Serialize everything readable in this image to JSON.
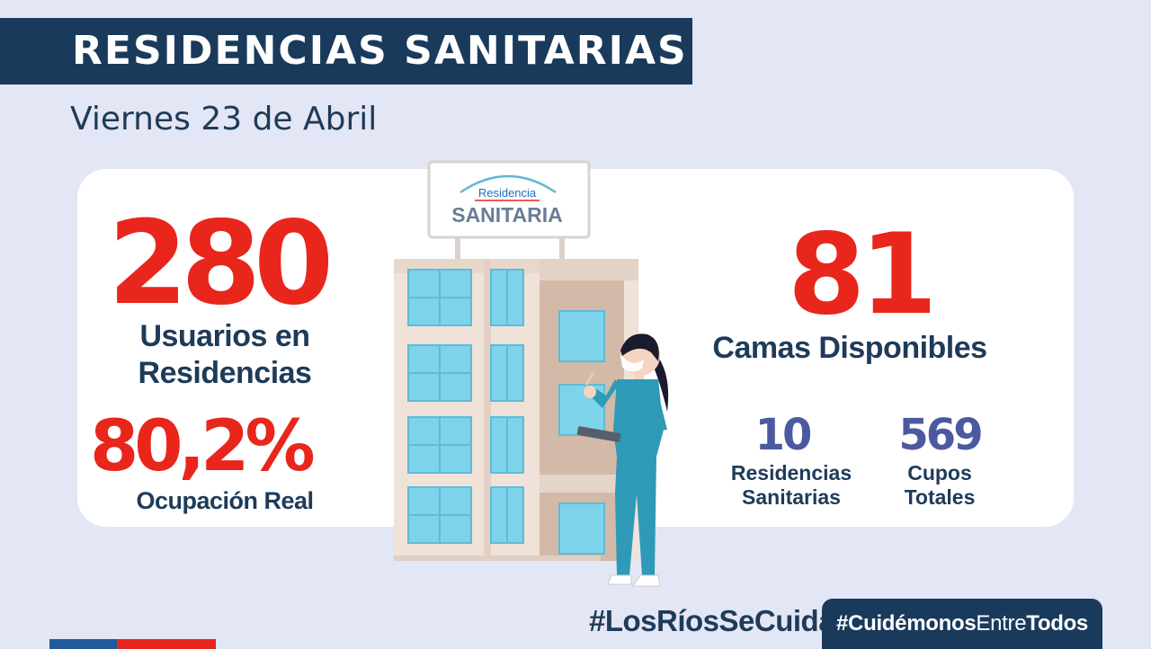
{
  "header": {
    "title": "RESIDENCIAS SANITARIAS",
    "date": "Viernes 23 de Abril"
  },
  "stats_left": {
    "users_value": "280",
    "users_label_line1": "Usuarios en",
    "users_label_line2": "Residencias",
    "occupancy_value": "80,2%",
    "occupancy_label": "Ocupación Real"
  },
  "stats_right": {
    "beds_value": "81",
    "beds_label": "Camas Disponibles",
    "residences_value": "10",
    "residences_label_line1": "Residencias",
    "residences_label_line2": "Sanitarias",
    "slots_value": "569",
    "slots_label_line1": "Cupos",
    "slots_label_line2": "Totales"
  },
  "sign": {
    "line1": "Residencia",
    "line2": "SANITARIA"
  },
  "footer": {
    "hashtag_left": "#LosRíosSeCuida",
    "hashtag_right_part1": "#Cuidémonos",
    "hashtag_right_part2": "Entre",
    "hashtag_right_part3": "Todos"
  },
  "colors": {
    "navy": "#1a3a5c",
    "red": "#e8261c",
    "blue_numbers": "#4b5aa0",
    "background": "#e3e6f4"
  }
}
